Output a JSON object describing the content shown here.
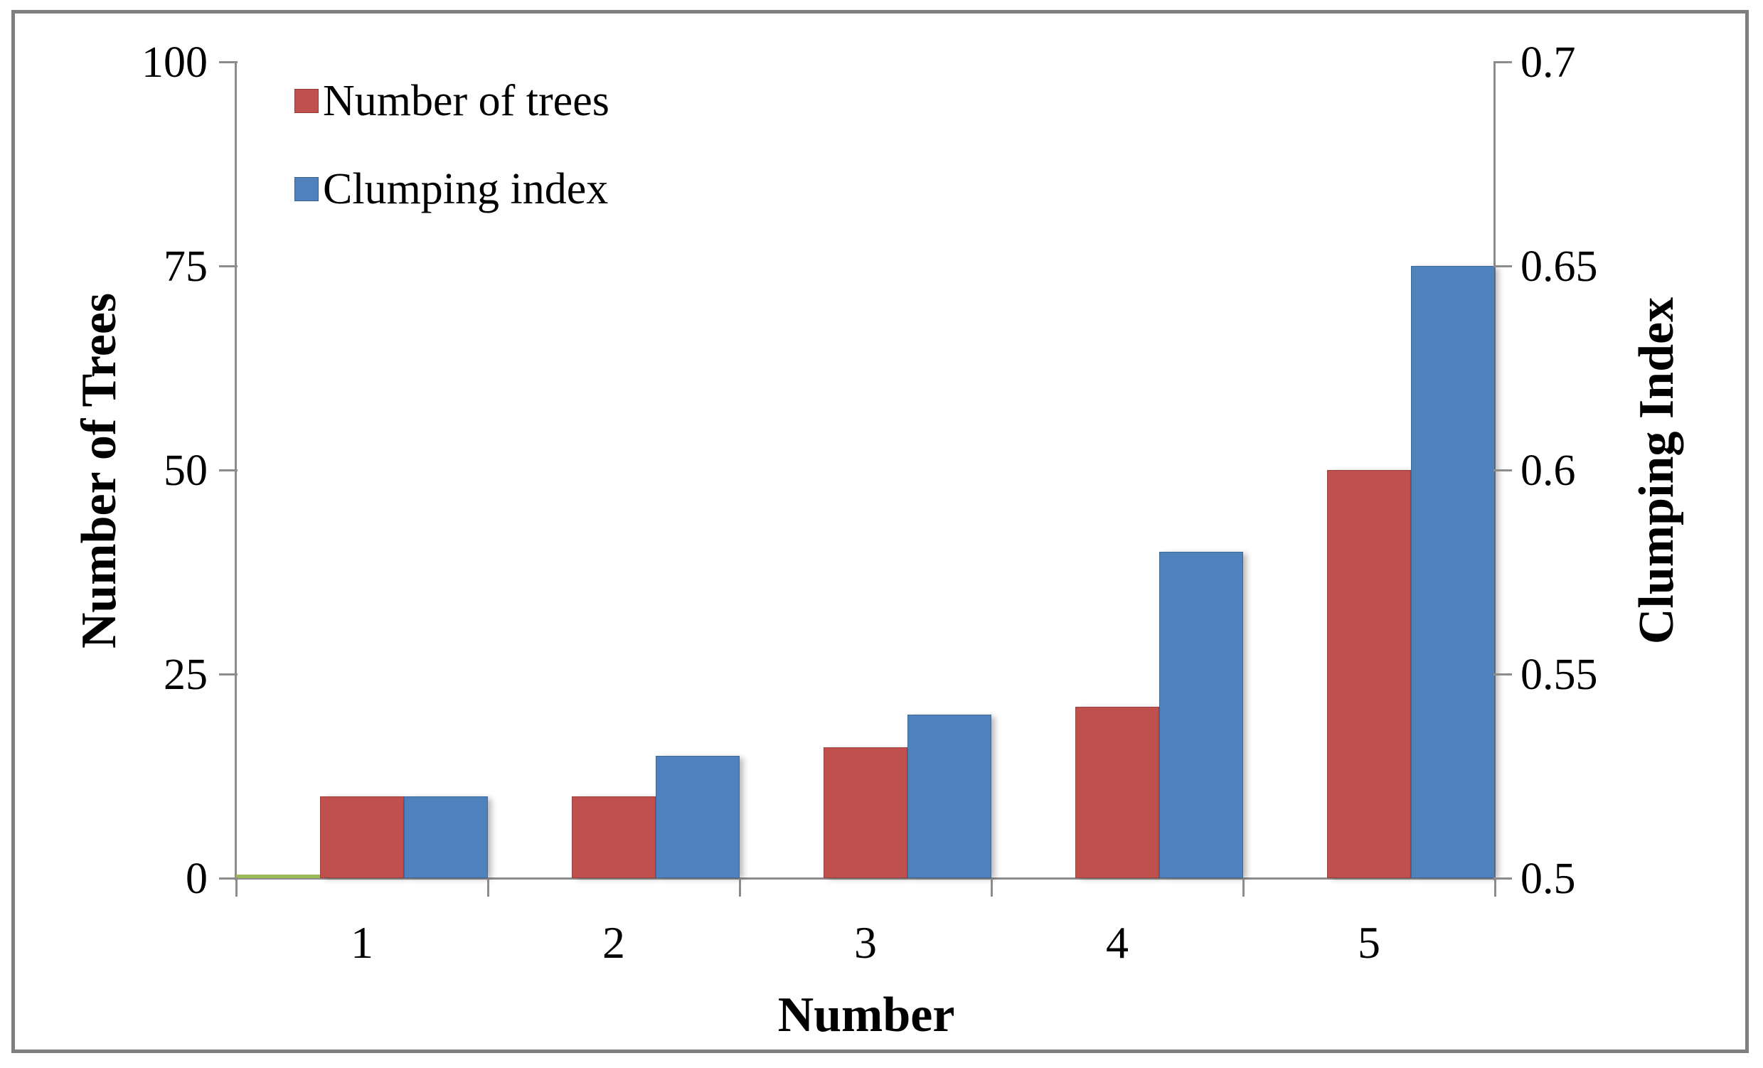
{
  "chart_data": {
    "type": "bar",
    "categories": [
      "1",
      "2",
      "3",
      "4",
      "5"
    ],
    "series": [
      {
        "name": "Number of trees",
        "axis": "left",
        "color": "#c0504d",
        "values": [
          10,
          10,
          16,
          21,
          50
        ]
      },
      {
        "name": "Clumping index",
        "axis": "right",
        "color": "#4f81bd",
        "values": [
          0.52,
          0.53,
          0.54,
          0.58,
          0.65
        ]
      }
    ],
    "zero_marker": {
      "category": "1",
      "color": "#9bbb59",
      "value": 0
    },
    "left_axis": {
      "title": "Number of Trees",
      "range": [
        0,
        100
      ],
      "ticks": [
        "0",
        "25",
        "50",
        "75",
        "100"
      ]
    },
    "right_axis": {
      "title": "Clumping Index",
      "range": [
        0.5,
        0.7
      ],
      "ticks": [
        "0.5",
        "0.55",
        "0.6",
        "0.65",
        "0.7"
      ]
    },
    "x_axis": {
      "title": "Number",
      "tick_labels": [
        "1",
        "2",
        "3",
        "4",
        "5"
      ]
    },
    "legend": {
      "position": "top-left"
    },
    "grid": false,
    "style": {
      "axis_color": "#8c8c8c",
      "border_color": "#7f7f7f",
      "text_color": "#000000",
      "background": "#ffffff"
    }
  }
}
